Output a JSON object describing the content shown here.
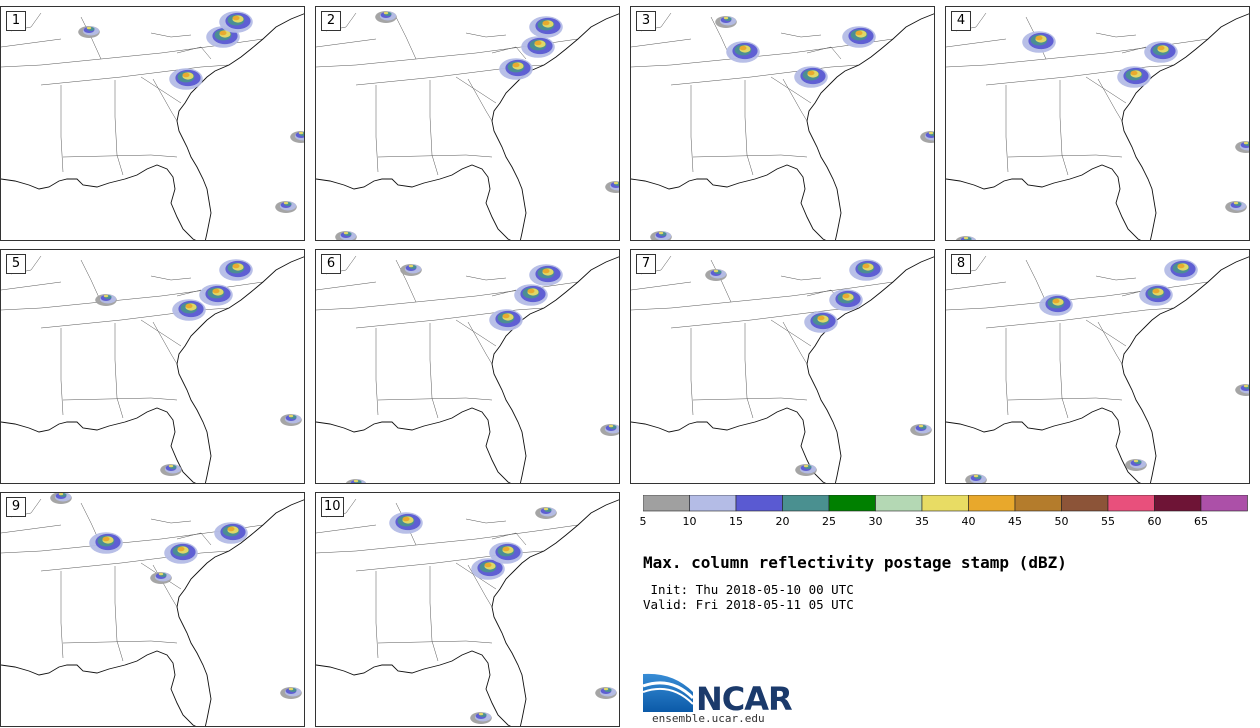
{
  "panels": [
    {
      "label": "1"
    },
    {
      "label": "2"
    },
    {
      "label": "3"
    },
    {
      "label": "4"
    },
    {
      "label": "5"
    },
    {
      "label": "6"
    },
    {
      "label": "7"
    },
    {
      "label": "8"
    },
    {
      "label": "9"
    },
    {
      "label": "10"
    }
  ],
  "colorbar": {
    "colors": [
      "#a0a0a0",
      "#b4bce6",
      "#5a5ad2",
      "#4a9090",
      "#008000",
      "#b4d8b4",
      "#e8dc64",
      "#e8a82c",
      "#b47c2c",
      "#8c5438",
      "#e8507c",
      "#6e1436",
      "#ac50a8"
    ],
    "ticks": [
      "5",
      "10",
      "15",
      "20",
      "25",
      "30",
      "35",
      "40",
      "45",
      "50",
      "55",
      "60",
      "65"
    ]
  },
  "title": "Max. column reflectivity postage stamp (dBZ)",
  "init": " Init: Thu 2018-05-10 00 UTC",
  "valid": "Valid: Fri 2018-05-11 05 UTC",
  "logo": {
    "text": "NCAR",
    "url": "ensemble.ucar.edu"
  }
}
